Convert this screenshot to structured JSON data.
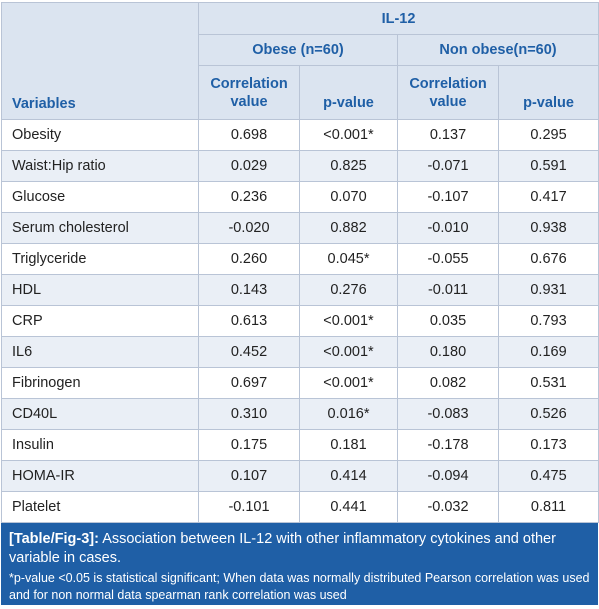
{
  "table": {
    "header": {
      "top": "IL-12",
      "groups": [
        "Obese (n=60)",
        "Non obese(n=60)"
      ],
      "variables_label": "Variables",
      "subheaders": [
        [
          "Correlation",
          "value"
        ],
        [
          "p-value"
        ],
        [
          "Correlation",
          "value"
        ],
        [
          "p-value"
        ]
      ]
    },
    "rows": [
      [
        "Obesity",
        "0.698",
        "<0.001*",
        "0.137",
        "0.295"
      ],
      [
        "Waist:Hip ratio",
        "0.029",
        "0.825",
        "-0.071",
        "0.591"
      ],
      [
        "Glucose",
        "0.236",
        "0.070",
        "-0.107",
        "0.417"
      ],
      [
        "Serum cholesterol",
        "-0.020",
        "0.882",
        "-0.010",
        "0.938"
      ],
      [
        "Triglyceride",
        "0.260",
        "0.045*",
        "-0.055",
        "0.676"
      ],
      [
        "HDL",
        "0.143",
        "0.276",
        "-0.011",
        "0.931"
      ],
      [
        "CRP",
        "0.613",
        "<0.001*",
        "0.035",
        "0.793"
      ],
      [
        "IL6",
        "0.452",
        "<0.001*",
        "0.180",
        "0.169"
      ],
      [
        "Fibrinogen",
        "0.697",
        "<0.001*",
        "0.082",
        "0.531"
      ],
      [
        "CD40L",
        "0.310",
        "0.016*",
        "-0.083",
        "0.526"
      ],
      [
        "Insulin",
        "0.175",
        "0.181",
        "-0.178",
        "0.173"
      ],
      [
        "HOMA-IR",
        "0.107",
        "0.414",
        "-0.094",
        "0.475"
      ],
      [
        "Platelet",
        "-0.101",
        "0.441",
        "-0.032",
        "0.811"
      ]
    ]
  },
  "caption": {
    "label": "[Table/Fig-3]:",
    "text": "Association between IL-12 with other inflammatory cytokines and other variable in cases.",
    "note": "*p-value <0.05 is statistical significant; When data was normally distributed Pearson correlation was used and for non normal data spearman rank correlation was used"
  },
  "colors": {
    "header_bg": "#dbe4f0",
    "header_text": "#1f5fa6",
    "stripe": "#eaeff6",
    "border": "#b9c4d6",
    "caption_bg": "#1f5fa6"
  }
}
